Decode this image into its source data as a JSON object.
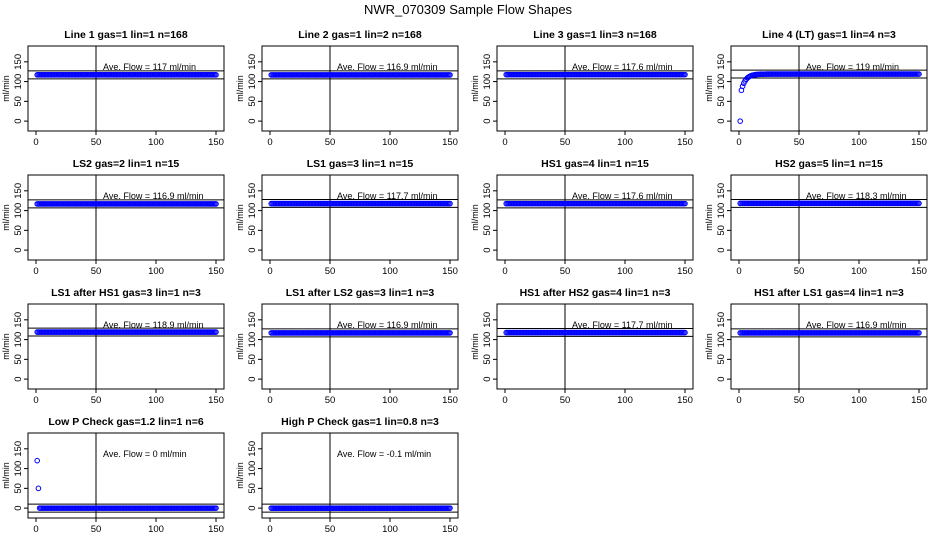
{
  "page_title": "NWR_070309  Sample Flow Shapes",
  "colors": {
    "points": "#0000ff",
    "axis": "#000000",
    "background": "#ffffff"
  },
  "chart_data": [
    {
      "type": "scatter",
      "title": "Line 1 gas=1 lin=1 n=168",
      "ylabel": "ml/min",
      "xlim": [
        0,
        150
      ],
      "ylim": [
        -25,
        190
      ],
      "xticks": [
        "0",
        "50",
        "100",
        "150"
      ],
      "yticks": [
        "0",
        "50",
        "100",
        "150"
      ],
      "grid": false,
      "ref_lines": {
        "vertical_x": 50,
        "horizontal_y": [
          107,
          127
        ]
      },
      "annotation": "Ave. Flow =  117   ml/min",
      "series": [
        {
          "shape": "flat",
          "start": 117,
          "level": 117
        }
      ]
    },
    {
      "type": "scatter",
      "title": "Line 2 gas=1 lin=2 n=168",
      "ylabel": "ml/min",
      "xlim": [
        0,
        150
      ],
      "ylim": [
        -25,
        190
      ],
      "xticks": [
        "0",
        "50",
        "100",
        "150"
      ],
      "yticks": [
        "0",
        "50",
        "100",
        "150"
      ],
      "grid": false,
      "ref_lines": {
        "vertical_x": 50,
        "horizontal_y": [
          107,
          127
        ]
      },
      "annotation": "Ave. Flow =  116.9  ml/min",
      "series": [
        {
          "shape": "flat",
          "start": 116.9,
          "level": 116.9
        }
      ]
    },
    {
      "type": "scatter",
      "title": "Line 3 gas=1 lin=3 n=168",
      "ylabel": "ml/min",
      "xlim": [
        0,
        150
      ],
      "ylim": [
        -25,
        190
      ],
      "xticks": [
        "0",
        "50",
        "100",
        "150"
      ],
      "yticks": [
        "0",
        "50",
        "100",
        "150"
      ],
      "grid": false,
      "ref_lines": {
        "vertical_x": 50,
        "horizontal_y": [
          107,
          127
        ]
      },
      "annotation": "Ave. Flow =  117.6  ml/min",
      "series": [
        {
          "shape": "flat",
          "start": 117.6,
          "level": 117.6
        }
      ]
    },
    {
      "type": "scatter",
      "title": "Line 4 (LT) gas=1 lin=4 n=3",
      "ylabel": "ml/min",
      "xlim": [
        0,
        150
      ],
      "ylim": [
        -25,
        190
      ],
      "xticks": [
        "0",
        "50",
        "100",
        "150"
      ],
      "yticks": [
        "0",
        "50",
        "100",
        "150"
      ],
      "grid": false,
      "ref_lines": {
        "vertical_x": 50,
        "horizontal_y": [
          109,
          129
        ]
      },
      "annotation": "Ave. Flow =  119   ml/min",
      "series": [
        {
          "shape": "rise",
          "start": 0,
          "second": 78,
          "level": 119
        }
      ]
    },
    {
      "type": "scatter",
      "title": "LS2 gas=2 lin=1 n=15",
      "ylabel": "ml/min",
      "xlim": [
        0,
        150
      ],
      "ylim": [
        -25,
        190
      ],
      "xticks": [
        "0",
        "50",
        "100",
        "150"
      ],
      "yticks": [
        "0",
        "50",
        "100",
        "150"
      ],
      "grid": false,
      "ref_lines": {
        "vertical_x": 50,
        "horizontal_y": [
          107,
          127
        ]
      },
      "annotation": "Ave. Flow =  116.9  ml/min",
      "series": [
        {
          "shape": "flat",
          "start": 116.9,
          "level": 116.9
        }
      ]
    },
    {
      "type": "scatter",
      "title": "LS1 gas=3 lin=1 n=15",
      "ylabel": "ml/min",
      "xlim": [
        0,
        150
      ],
      "ylim": [
        -25,
        190
      ],
      "xticks": [
        "0",
        "50",
        "100",
        "150"
      ],
      "yticks": [
        "0",
        "50",
        "100",
        "150"
      ],
      "grid": false,
      "ref_lines": {
        "vertical_x": 50,
        "horizontal_y": [
          108,
          128
        ]
      },
      "annotation": "Ave. Flow =  117.7  ml/min",
      "series": [
        {
          "shape": "flat",
          "start": 117.7,
          "level": 117.7
        }
      ]
    },
    {
      "type": "scatter",
      "title": "HS1 gas=4 lin=1 n=15",
      "ylabel": "ml/min",
      "xlim": [
        0,
        150
      ],
      "ylim": [
        -25,
        190
      ],
      "xticks": [
        "0",
        "50",
        "100",
        "150"
      ],
      "yticks": [
        "0",
        "50",
        "100",
        "150"
      ],
      "grid": false,
      "ref_lines": {
        "vertical_x": 50,
        "horizontal_y": [
          107,
          127
        ]
      },
      "annotation": "Ave. Flow =  117.6  ml/min",
      "series": [
        {
          "shape": "flat",
          "start": 117.6,
          "level": 117.6
        }
      ]
    },
    {
      "type": "scatter",
      "title": "HS2 gas=5 lin=1 n=15",
      "ylabel": "ml/min",
      "xlim": [
        0,
        150
      ],
      "ylim": [
        -25,
        190
      ],
      "xticks": [
        "0",
        "50",
        "100",
        "150"
      ],
      "yticks": [
        "0",
        "50",
        "100",
        "150"
      ],
      "grid": false,
      "ref_lines": {
        "vertical_x": 50,
        "horizontal_y": [
          108,
          128
        ]
      },
      "annotation": "Ave. Flow =  118.3  ml/min",
      "series": [
        {
          "shape": "flat",
          "start": 118.3,
          "level": 118.3
        }
      ]
    },
    {
      "type": "scatter",
      "title": "LS1 after HS1 gas=3 lin=1 n=3",
      "ylabel": "ml/min",
      "xlim": [
        0,
        150
      ],
      "ylim": [
        -25,
        190
      ],
      "xticks": [
        "0",
        "50",
        "100",
        "150"
      ],
      "yticks": [
        "0",
        "50",
        "100",
        "150"
      ],
      "grid": false,
      "ref_lines": {
        "vertical_x": 50,
        "horizontal_y": [
          109,
          129
        ]
      },
      "annotation": "Ave. Flow =  118.9  ml/min",
      "series": [
        {
          "shape": "flat",
          "start": 118.9,
          "level": 118.9
        }
      ]
    },
    {
      "type": "scatter",
      "title": "LS1 after LS2 gas=3 lin=1 n=3",
      "ylabel": "ml/min",
      "xlim": [
        0,
        150
      ],
      "ylim": [
        -25,
        190
      ],
      "xticks": [
        "0",
        "50",
        "100",
        "150"
      ],
      "yticks": [
        "0",
        "50",
        "100",
        "150"
      ],
      "grid": false,
      "ref_lines": {
        "vertical_x": 50,
        "horizontal_y": [
          107,
          127
        ]
      },
      "annotation": "Ave. Flow =  116.9  ml/min",
      "series": [
        {
          "shape": "flat",
          "start": 116.9,
          "level": 116.9
        }
      ]
    },
    {
      "type": "scatter",
      "title": "HS1 after HS2 gas=4 lin=1 n=3",
      "ylabel": "ml/min",
      "xlim": [
        0,
        150
      ],
      "ylim": [
        -25,
        190
      ],
      "xticks": [
        "0",
        "50",
        "100",
        "150"
      ],
      "yticks": [
        "0",
        "50",
        "100",
        "150"
      ],
      "grid": false,
      "ref_lines": {
        "vertical_x": 50,
        "horizontal_y": [
          108,
          128
        ]
      },
      "annotation": "Ave. Flow =  117.7  ml/min",
      "series": [
        {
          "shape": "flat",
          "start": 117.7,
          "level": 117.7
        }
      ]
    },
    {
      "type": "scatter",
      "title": "HS1 after LS1 gas=4 lin=1 n=3",
      "ylabel": "ml/min",
      "xlim": [
        0,
        150
      ],
      "ylim": [
        -25,
        190
      ],
      "xticks": [
        "0",
        "50",
        "100",
        "150"
      ],
      "yticks": [
        "0",
        "50",
        "100",
        "150"
      ],
      "grid": false,
      "ref_lines": {
        "vertical_x": 50,
        "horizontal_y": [
          107,
          127
        ]
      },
      "annotation": "Ave. Flow =  116.9  ml/min",
      "series": [
        {
          "shape": "flat",
          "start": 116.9,
          "level": 116.9
        }
      ]
    },
    {
      "type": "scatter",
      "title": "Low P Check gas=1.2 lin=1 n=6",
      "ylabel": "ml/min",
      "xlim": [
        0,
        150
      ],
      "ylim": [
        -25,
        190
      ],
      "xticks": [
        "0",
        "50",
        "100",
        "150"
      ],
      "yticks": [
        "0",
        "50",
        "100",
        "150"
      ],
      "grid": false,
      "ref_lines": {
        "vertical_x": 50,
        "horizontal_y": [
          -10,
          10
        ]
      },
      "annotation": "Ave. Flow =  0   ml/min",
      "series": [
        {
          "shape": "decay",
          "start": 120,
          "second": 50,
          "level": 0
        }
      ]
    },
    {
      "type": "scatter",
      "title": "High P Check gas=1 lin=0.8 n=3",
      "ylabel": "ml/min",
      "xlim": [
        0,
        150
      ],
      "ylim": [
        -25,
        190
      ],
      "xticks": [
        "0",
        "50",
        "100",
        "150"
      ],
      "yticks": [
        "0",
        "50",
        "100",
        "150"
      ],
      "grid": false,
      "ref_lines": {
        "vertical_x": 50,
        "horizontal_y": [
          -10,
          10
        ]
      },
      "annotation": "Ave. Flow =  -0.1  ml/min",
      "series": [
        {
          "shape": "flat",
          "start": -0.1,
          "level": -0.1
        }
      ]
    }
  ]
}
